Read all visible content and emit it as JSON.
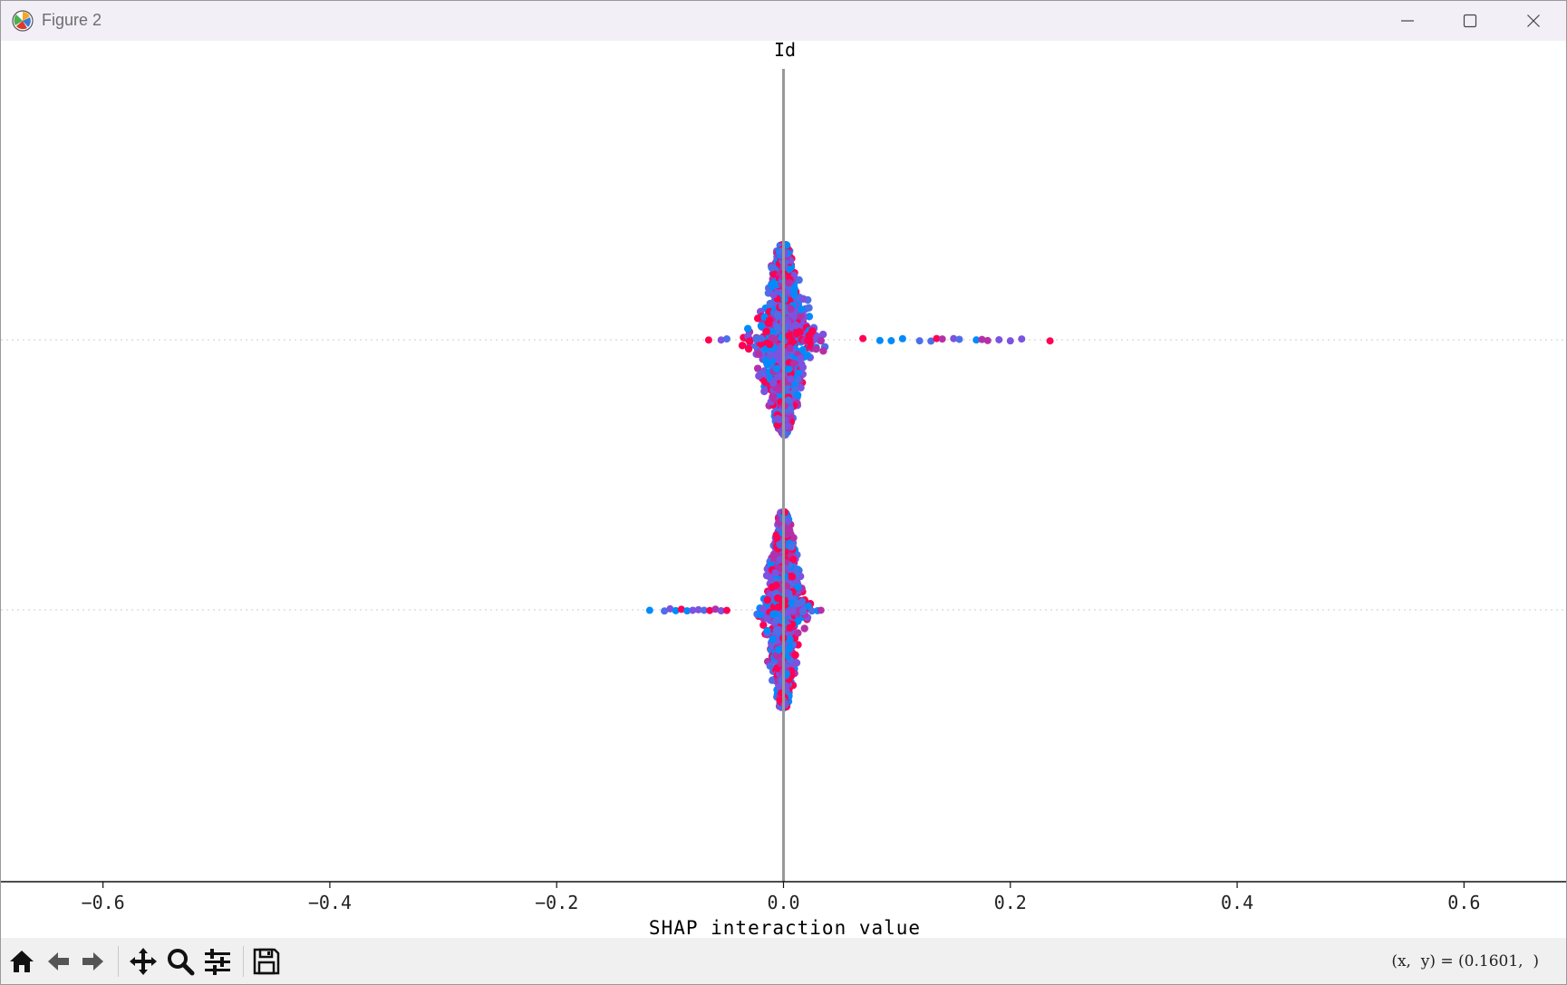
{
  "window": {
    "title": "Figure 2",
    "controls": {
      "minimize": "minimize",
      "maximize": "maximize",
      "close": "close"
    }
  },
  "chart_data": {
    "type": "scatter",
    "title": "Id",
    "xlabel": "SHAP interaction value",
    "xlim": [
      -0.69,
      0.69
    ],
    "xticks": [
      -0.6,
      -0.4,
      -0.2,
      0.0,
      0.2,
      0.4,
      0.6
    ],
    "xtick_labels": [
      "−0.6",
      "−0.4",
      "−0.2",
      "0.0",
      "0.2",
      "0.4",
      "0.6"
    ],
    "zero_line": 0.0,
    "grid": "dotted horizontal row lines",
    "point_colors": [
      "#ff0052",
      "#008bfb",
      "#7c52e0",
      "#b430a8",
      "#4c6fe8"
    ],
    "series": [
      {
        "row": 0,
        "min": -0.07,
        "max": 0.235,
        "core_range": [
          -0.04,
          0.03
        ],
        "tail_points": [
          -0.066,
          -0.055,
          -0.05,
          0.07,
          0.085,
          0.095,
          0.105,
          0.12,
          0.13,
          0.135,
          0.14,
          0.15,
          0.155,
          0.17,
          0.175,
          0.18,
          0.19,
          0.2,
          0.21,
          0.235
        ]
      },
      {
        "row": 1,
        "min": -0.118,
        "max": 0.033,
        "core_range": [
          -0.02,
          0.02
        ],
        "tail_points": [
          -0.118,
          -0.105,
          -0.1,
          -0.095,
          -0.09,
          -0.085,
          -0.08,
          -0.075,
          -0.07,
          -0.065,
          -0.06,
          -0.055,
          -0.05,
          0.025,
          0.03,
          0.033
        ]
      }
    ]
  },
  "toolbar": {
    "coords_text": "(x,  y) = (0.1601,  )",
    "tools": [
      "home-icon",
      "back-icon",
      "forward-icon",
      "pan-icon",
      "zoom-icon",
      "configure-icon",
      "save-icon"
    ]
  }
}
